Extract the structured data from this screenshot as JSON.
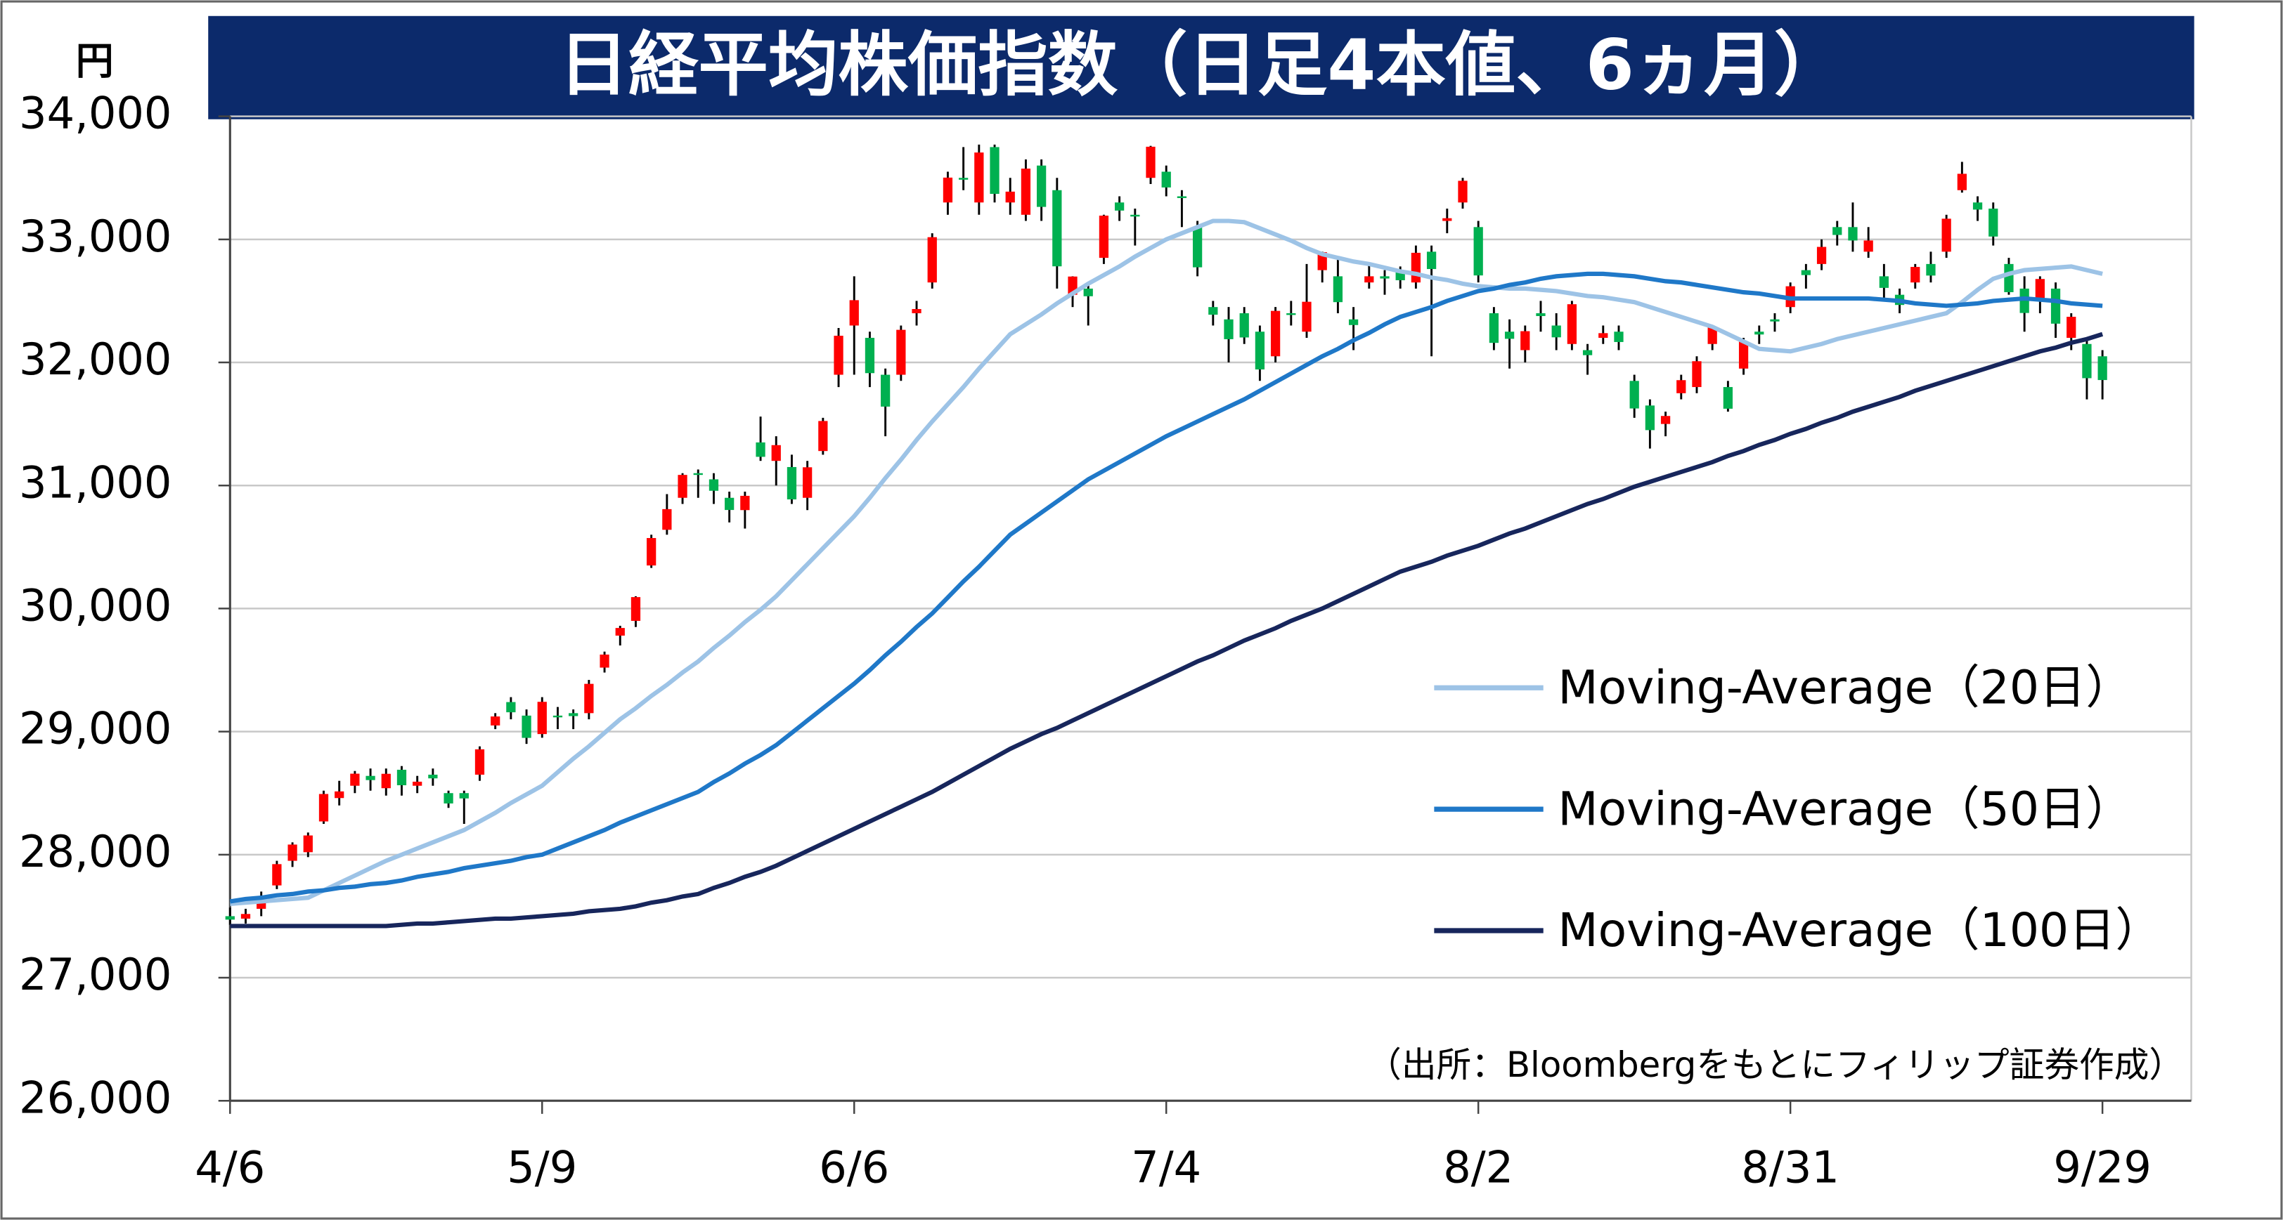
{
  "chart_data": {
    "type": "candlestick",
    "title": "日経平均株価指数（日足4本値、6ヵ月）",
    "y_unit": "円",
    "source": "（出所：Bloombergをもとにフィリップ証券作成）",
    "categories": [
      "4/6",
      null,
      null,
      null,
      null,
      null,
      null,
      null,
      null,
      null,
      null,
      null,
      null,
      null,
      null,
      null,
      null,
      null,
      null,
      null,
      "5/9",
      null,
      null,
      null,
      null,
      null,
      null,
      null,
      null,
      null,
      null,
      null,
      null,
      null,
      null,
      null,
      null,
      null,
      null,
      null,
      "6/6",
      null,
      null,
      null,
      null,
      null,
      null,
      null,
      null,
      null,
      null,
      null,
      null,
      null,
      null,
      null,
      null,
      null,
      null,
      null,
      "7/4",
      null,
      null,
      null,
      null,
      null,
      null,
      null,
      null,
      null,
      null,
      null,
      null,
      null,
      null,
      null,
      null,
      null,
      null,
      null,
      "8/2",
      null,
      null,
      null,
      null,
      null,
      null,
      null,
      null,
      null,
      null,
      null,
      null,
      null,
      null,
      null,
      null,
      null,
      null,
      null,
      "8/31",
      null,
      null,
      null,
      null,
      null,
      null,
      null,
      null,
      null,
      null,
      null,
      null,
      null,
      null,
      null,
      null,
      null,
      null,
      null,
      "9/29"
    ],
    "open": [
      27500,
      27480,
      27560,
      27750,
      27950,
      28020,
      28270,
      28460,
      28560,
      28640,
      28540,
      28690,
      28560,
      28650,
      28500,
      28500,
      28650,
      29050,
      29240,
      29130,
      28980,
      29130,
      29150,
      29150,
      29520,
      29780,
      29900,
      30350,
      30640,
      30900,
      31100,
      31050,
      30900,
      30800,
      31350,
      31200,
      31150,
      30900,
      31280,
      31900,
      32300,
      32200,
      31900,
      31900,
      32400,
      32650,
      33300,
      33500,
      33300,
      33750,
      33300,
      33200,
      33600,
      33400,
      32550,
      32600,
      32850,
      33300,
      33200,
      33500,
      33550,
      33350,
      33100,
      32450,
      32350,
      32400,
      32250,
      32050,
      32400,
      32250,
      32750,
      32700,
      32350,
      32650,
      32700,
      32750,
      32650,
      32900,
      33150,
      33300,
      33100,
      32400,
      32250,
      32100,
      32400,
      32300,
      32150,
      32100,
      32200,
      32250,
      31850,
      31650,
      31500,
      31750,
      31800,
      32150,
      31800,
      31950,
      32250,
      32350,
      32450,
      32750,
      32800,
      33100,
      33100,
      32900,
      32700,
      32550,
      32650,
      32800,
      32900,
      33400,
      33300,
      33250,
      32800,
      32600,
      32500,
      32600,
      32200,
      32150,
      32050
    ],
    "high": [
      27570,
      27560,
      27700,
      27950,
      28100,
      28180,
      28520,
      28600,
      28680,
      28700,
      28700,
      28720,
      28640,
      28700,
      28520,
      28520,
      28880,
      29150,
      29280,
      29180,
      29280,
      29200,
      29180,
      29420,
      29650,
      29860,
      30100,
      30600,
      30930,
      31100,
      31130,
      31100,
      30950,
      30950,
      31560,
      31400,
      31250,
      31200,
      31550,
      32280,
      32700,
      32250,
      31950,
      32300,
      32500,
      33050,
      33550,
      33750,
      33770,
      33770,
      33500,
      33650,
      33650,
      33500,
      32700,
      32650,
      33200,
      33350,
      33250,
      33760,
      33600,
      33400,
      33150,
      32500,
      32450,
      32450,
      32300,
      32450,
      32500,
      32800,
      32900,
      32850,
      32450,
      32800,
      32750,
      32780,
      32950,
      32950,
      33250,
      33500,
      33150,
      32450,
      32350,
      32300,
      32500,
      32400,
      32500,
      32150,
      32300,
      32300,
      31900,
      31700,
      31600,
      31900,
      32050,
      32300,
      31850,
      32200,
      32300,
      32400,
      32650,
      32800,
      33000,
      33150,
      33300,
      33100,
      32800,
      32600,
      32800,
      32900,
      33200,
      33630,
      33350,
      33300,
      32850,
      32700,
      32700,
      32650,
      32400,
      32200,
      32100
    ],
    "low": [
      27430,
      27440,
      27500,
      27720,
      27900,
      27980,
      28250,
      28400,
      28500,
      28520,
      28480,
      28480,
      28500,
      28560,
      28380,
      28250,
      28600,
      29020,
      29100,
      28900,
      28950,
      29020,
      29020,
      29100,
      29480,
      29700,
      29850,
      30330,
      30600,
      30850,
      30900,
      30850,
      30700,
      30650,
      31200,
      31000,
      30850,
      30800,
      31250,
      31800,
      31900,
      31800,
      31400,
      31850,
      32300,
      32600,
      33200,
      33400,
      33200,
      33300,
      33200,
      33150,
      33150,
      32600,
      32450,
      32300,
      32800,
      33150,
      32950,
      33450,
      33350,
      33100,
      32700,
      32300,
      32000,
      32150,
      31850,
      32000,
      32300,
      32200,
      32650,
      32400,
      32100,
      32600,
      32550,
      32600,
      32600,
      32050,
      33050,
      33250,
      32650,
      32100,
      31950,
      32000,
      32250,
      32100,
      32100,
      31900,
      32150,
      32100,
      31550,
      31300,
      31400,
      31700,
      31750,
      32100,
      31600,
      31900,
      32150,
      32250,
      32400,
      32600,
      32750,
      32950,
      32900,
      32850,
      32500,
      32400,
      32600,
      32650,
      32850,
      33380,
      33150,
      32950,
      32550,
      32250,
      32400,
      32200,
      32100,
      31700,
      31700
    ],
    "close": [
      27472,
      27518,
      27633,
      27923,
      28082,
      28156,
      28493,
      28514,
      28658,
      28606,
      28657,
      28564,
      28593,
      28620,
      28416,
      28457,
      28856,
      29123,
      29157,
      28949,
      29242,
      29122,
      29126,
      29388,
      29626,
      29842,
      30093,
      30573,
      30808,
      31086,
      31086,
      30957,
      30801,
      30916,
      31233,
      31328,
      30887,
      31148,
      31524,
      32217,
      32506,
      31913,
      31641,
      32265,
      32434,
      33018,
      33502,
      33485,
      33706,
      33370,
      33388,
      33575,
      33264,
      32781,
      32698,
      32538,
      33193,
      33234,
      33189,
      33753,
      33422,
      33338,
      32773,
      32388,
      32189,
      32203,
      31943,
      32419,
      32391,
      32493,
      32896,
      32490,
      32304,
      32700,
      32682,
      32668,
      32891,
      32759,
      33172,
      33476,
      32707,
      32159,
      32192,
      32254,
      32377,
      32204,
      32473,
      32059,
      32238,
      32166,
      31626,
      31450,
      31565,
      31856,
      32010,
      32287,
      31624,
      32169,
      32227,
      32333,
      32619,
      32710,
      32939,
      33036,
      32991,
      32991,
      32606,
      32467,
      32776,
      32706,
      33168,
      33533,
      33242,
      33023,
      32571,
      32402,
      32678,
      32315,
      32371,
      31872,
      31857
    ],
    "up_color": "#ff0000",
    "down_color": "#00b050",
    "wick_color": "#000000",
    "series": [
      {
        "name": "Moving-Average（20日）",
        "color": "#9dc3e6",
        "values": [
          27600,
          27610,
          27620,
          27630,
          27640,
          27650,
          27710,
          27770,
          27830,
          27890,
          27950,
          28000,
          28050,
          28100,
          28150,
          28200,
          28270,
          28340,
          28420,
          28490,
          28560,
          28670,
          28780,
          28880,
          28990,
          29100,
          29190,
          29290,
          29380,
          29480,
          29570,
          29680,
          29780,
          29890,
          29990,
          30100,
          30230,
          30360,
          30490,
          30620,
          30750,
          30900,
          31060,
          31210,
          31370,
          31520,
          31660,
          31800,
          31950,
          32090,
          32230,
          32310,
          32390,
          32480,
          32560,
          32640,
          32710,
          32780,
          32860,
          32930,
          33000,
          33050,
          33100,
          33150,
          33150,
          33140,
          33090,
          33040,
          32990,
          32930,
          32880,
          32850,
          32820,
          32800,
          32770,
          32740,
          32720,
          32690,
          32670,
          32640,
          32620,
          32610,
          32600,
          32600,
          32590,
          32580,
          32560,
          32540,
          32530,
          32510,
          32490,
          32450,
          32410,
          32370,
          32330,
          32290,
          32230,
          32170,
          32110,
          32100,
          32090,
          32120,
          32150,
          32190,
          32220,
          32250,
          32280,
          32310,
          32340,
          32370,
          32400,
          32490,
          32590,
          32680,
          32720,
          32750,
          32760,
          32770,
          32780,
          32750,
          32720
        ]
      },
      {
        "name": "Moving-Average（50日）",
        "color": "#1f78c8",
        "values": [
          27620,
          27640,
          27650,
          27670,
          27680,
          27700,
          27710,
          27730,
          27740,
          27760,
          27770,
          27790,
          27820,
          27840,
          27860,
          27890,
          27910,
          27930,
          27950,
          27980,
          28000,
          28050,
          28100,
          28150,
          28200,
          28260,
          28310,
          28360,
          28410,
          28460,
          28510,
          28590,
          28660,
          28740,
          28810,
          28890,
          28990,
          29090,
          29190,
          29290,
          29390,
          29500,
          29620,
          29730,
          29850,
          29960,
          30090,
          30220,
          30340,
          30470,
          30600,
          30690,
          30780,
          30870,
          30960,
          31050,
          31120,
          31190,
          31260,
          31330,
          31400,
          31460,
          31520,
          31580,
          31640,
          31700,
          31770,
          31840,
          31910,
          31980,
          32050,
          32110,
          32180,
          32240,
          32310,
          32370,
          32410,
          32450,
          32500,
          32540,
          32580,
          32600,
          32630,
          32650,
          32680,
          32700,
          32710,
          32720,
          32720,
          32710,
          32700,
          32680,
          32660,
          32650,
          32630,
          32610,
          32590,
          32570,
          32560,
          32540,
          32520,
          32520,
          32520,
          32520,
          32520,
          32520,
          32510,
          32500,
          32480,
          32470,
          32460,
          32470,
          32480,
          32500,
          32510,
          32520,
          32510,
          32500,
          32480,
          32470,
          32460
        ]
      },
      {
        "name": "Moving-Average（100日）",
        "color": "#17265c",
        "values": [
          27420,
          27420,
          27420,
          27420,
          27420,
          27420,
          27420,
          27420,
          27420,
          27420,
          27420,
          27430,
          27440,
          27440,
          27450,
          27460,
          27470,
          27480,
          27480,
          27490,
          27500,
          27510,
          27520,
          27540,
          27550,
          27560,
          27580,
          27610,
          27630,
          27660,
          27680,
          27730,
          27770,
          27820,
          27860,
          27910,
          27970,
          28030,
          28090,
          28150,
          28210,
          28270,
          28330,
          28390,
          28450,
          28510,
          28580,
          28650,
          28720,
          28790,
          28860,
          28920,
          28980,
          29030,
          29090,
          29150,
          29210,
          29270,
          29330,
          29390,
          29450,
          29510,
          29570,
          29620,
          29680,
          29740,
          29790,
          29840,
          29900,
          29950,
          30000,
          30060,
          30120,
          30180,
          30240,
          30300,
          30340,
          30380,
          30430,
          30470,
          30510,
          30560,
          30610,
          30650,
          30700,
          30750,
          30800,
          30850,
          30890,
          30940,
          30990,
          31030,
          31070,
          31110,
          31150,
          31190,
          31240,
          31280,
          31330,
          31370,
          31420,
          31460,
          31510,
          31550,
          31600,
          31640,
          31680,
          31720,
          31770,
          31810,
          31850,
          31890,
          31930,
          31970,
          32010,
          32050,
          32090,
          32120,
          32160,
          32190,
          32230
        ]
      }
    ],
    "ylim": [
      26000,
      34000
    ],
    "yticks": [
      {
        "value": 26000,
        "label": "26,000"
      },
      {
        "value": 27000,
        "label": "27,000"
      },
      {
        "value": 28000,
        "label": "28,000"
      },
      {
        "value": 29000,
        "label": "29,000"
      },
      {
        "value": 30000,
        "label": "30,000"
      },
      {
        "value": 31000,
        "label": "31,000"
      },
      {
        "value": 32000,
        "label": "32,000"
      },
      {
        "value": 33000,
        "label": "33,000"
      },
      {
        "value": 34000,
        "label": "34,000"
      }
    ],
    "grid": true,
    "legend": "right"
  }
}
